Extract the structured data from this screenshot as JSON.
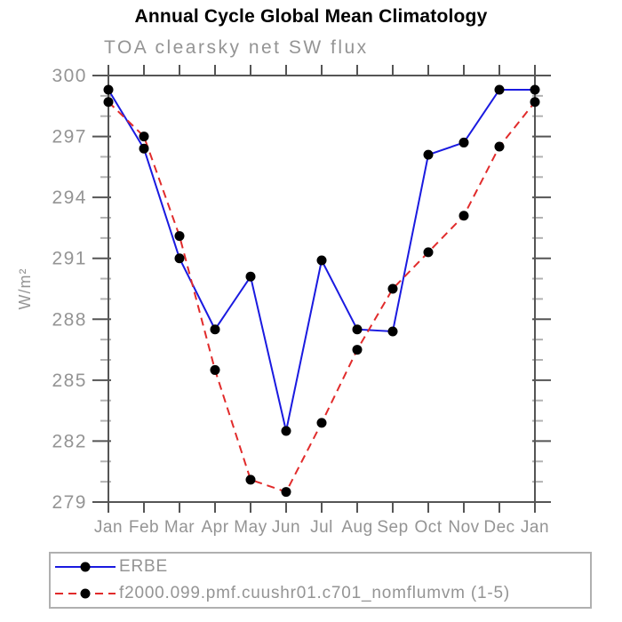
{
  "title": "Annual Cycle Global Mean Climatology",
  "subtitle": "TOA clearsky net SW flux",
  "colors": {
    "erbe_line": "#1a1ae0",
    "model_line": "#e12b2b",
    "marker": "#000000",
    "axis": "#555555",
    "minor_tick": "#b2b2b2",
    "tick_label": "#949494",
    "legend_border": "#b0b0b0"
  },
  "chart_data": {
    "type": "line",
    "title": "Annual Cycle Global Mean Climatology",
    "subtitle": "TOA clearsky net SW flux",
    "categories": [
      "Jan",
      "Feb",
      "Mar",
      "Apr",
      "May",
      "Jun",
      "Jul",
      "Aug",
      "Sep",
      "Oct",
      "Nov",
      "Dec",
      "Jan"
    ],
    "series": [
      {
        "name": "ERBE",
        "style": "solid",
        "color_key": "erbe_line",
        "marker": "filled-circle",
        "values": [
          299.3,
          296.4,
          291.0,
          287.5,
          290.1,
          282.5,
          290.9,
          287.5,
          287.4,
          296.1,
          296.7,
          299.3,
          299.3
        ]
      },
      {
        "name": "f2000.099.pmf.cuushr01.c701_nomflumvm (1-5)",
        "style": "dashed",
        "color_key": "model_line",
        "marker": "filled-circle",
        "values": [
          298.7,
          297.0,
          292.1,
          285.5,
          280.1,
          279.5,
          282.9,
          286.5,
          289.5,
          291.3,
          293.1,
          296.5,
          298.7
        ]
      }
    ],
    "xlabel": "",
    "ylabel": "W/m²",
    "ylim": [
      279,
      300
    ],
    "ytick_step": 3,
    "yminor_step": 1,
    "grid": false,
    "legend_position": "bottom-left-outside"
  }
}
